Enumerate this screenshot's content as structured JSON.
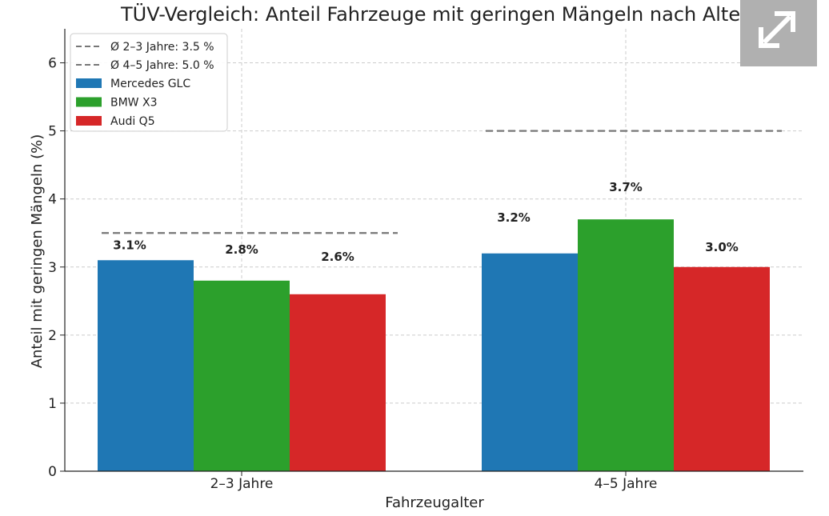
{
  "chart_data": {
    "type": "bar",
    "title": "TÜV-Vergleich: Anteil Fahrzeuge mit geringen Mängeln nach Alter",
    "xlabel": "Fahrzeugalter",
    "ylabel": "Anteil mit geringen Mängeln (%)",
    "ylim": [
      0,
      6.5
    ],
    "yticks": [
      0,
      1,
      2,
      3,
      4,
      5,
      6
    ],
    "ytick_labels": [
      "0",
      "1",
      "2",
      "3",
      "4",
      "5",
      "6"
    ],
    "categories": [
      "2–3 Jahre",
      "4–5 Jahre"
    ],
    "series": [
      {
        "name": "Mercedes GLC",
        "values": [
          3.1,
          3.2
        ],
        "color": "#1f77b4",
        "labels": [
          "3.1%",
          "3.2%"
        ]
      },
      {
        "name": "BMW X3",
        "values": [
          2.8,
          3.7
        ],
        "color": "#2ca02c",
        "labels": [
          "2.8%",
          "3.7%"
        ]
      },
      {
        "name": "Audi Q5",
        "values": [
          2.6,
          3.0
        ],
        "color": "#d62728",
        "labels": [
          "2.6%",
          "3.0%"
        ]
      }
    ],
    "reference_lines": [
      {
        "name": "Ø 2–3 Jahre: 3.5 %",
        "value": 3.5,
        "category": 0,
        "color": "#777777"
      },
      {
        "name": "Ø 4–5 Jahre: 5.0 %",
        "value": 5.0,
        "category": 1,
        "color": "#777777"
      }
    ],
    "grid": true,
    "legend_position": "top-left"
  },
  "ui": {
    "expand_icon": "expand-arrows-icon"
  }
}
